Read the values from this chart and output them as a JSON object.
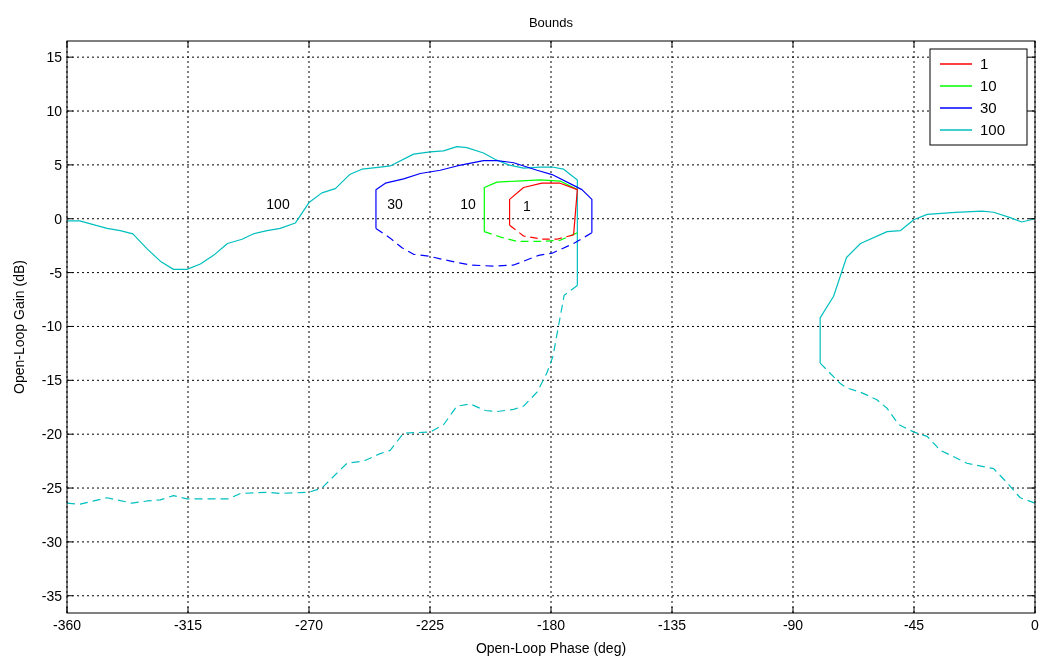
{
  "chart_data": {
    "type": "line",
    "title": "Bounds",
    "xlabel": "Open-Loop Phase (deg)",
    "ylabel": "Open-Loop Gain (dB)",
    "xlim": [
      -360,
      0
    ],
    "ylim": [
      -36.6,
      16.5
    ],
    "xticks": [
      -360,
      -315,
      -270,
      -225,
      -180,
      -135,
      -90,
      -45,
      0
    ],
    "yticks": [
      -35,
      -30,
      -25,
      -20,
      -15,
      -10,
      -5,
      0,
      5,
      10,
      15
    ],
    "grid": true,
    "legend": "top right",
    "series": [
      {
        "name": "1",
        "color": "#ff0000",
        "line_style": "solid",
        "x": [
          -195.4,
          -195.4,
          -190.2,
          -183.4,
          -176.6,
          -170.2,
          -171.6
        ],
        "values": [
          -0.6,
          1.8,
          2.9,
          3.3,
          3.3,
          2.7,
          -1.5
        ]
      },
      {
        "color": "#ff0000",
        "line_style": "dashed",
        "x": [
          -171.6,
          -177.8,
          -183.4,
          -190.2,
          -195.4
        ],
        "values": [
          -1.5,
          -1.9,
          -1.9,
          -1.6,
          -0.6
        ]
      },
      {
        "name": "10",
        "color": "#00ff00",
        "line_style": "solid",
        "x": [
          -204.8,
          -204.8,
          -200.1,
          -192.7,
          -184,
          -176.6,
          -170.2
        ],
        "values": [
          -1.2,
          2.9,
          3.4,
          3.5,
          3.6,
          3.5,
          2.7
        ]
      },
      {
        "color": "#00ff00",
        "line_style": "dashed",
        "x": [
          -170.2,
          -176.6,
          -184,
          -192.7,
          -198.8,
          -204.8
        ],
        "values": [
          -1.3,
          -2.0,
          -2.1,
          -2.1,
          -1.7,
          -1.2
        ]
      },
      {
        "name": "30",
        "color": "#0000ff",
        "line_style": "solid",
        "x": [
          -245.1,
          -245.1,
          -241.6,
          -234.8,
          -228.6,
          -221.2,
          -215,
          -205.1,
          -200.1,
          -193.9,
          -185.2,
          -179.6,
          -171.6,
          -168.5,
          -164.8,
          -164.8
        ],
        "values": [
          -0.9,
          2.7,
          3.3,
          3.7,
          4.2,
          4.5,
          4.9,
          5.4,
          5.4,
          5.2,
          4.5,
          4.1,
          3.1,
          2.7,
          1.8,
          -1.3
        ]
      },
      {
        "color": "#0000ff",
        "line_style": "dashed",
        "x": [
          -164.8,
          -171.6,
          -179.6,
          -184.6,
          -193.9,
          -201.3,
          -210,
          -219.9,
          -224.9,
          -231.1,
          -235.4,
          -239.8,
          -245.1
        ],
        "values": [
          -1.3,
          -2.3,
          -3.2,
          -3.4,
          -4.3,
          -4.4,
          -4.3,
          -3.8,
          -3.5,
          -3.3,
          -2.7,
          -1.8,
          -0.9
        ]
      },
      {
        "name": "100",
        "color": "#00bfbf",
        "line_style": "solid",
        "x": [
          -360,
          -355.3,
          -345.1,
          -340.2,
          -335.5,
          -330.2,
          -325,
          -320.4,
          -315.4,
          -310.4,
          -305.5,
          -300.3,
          -294.9,
          -290.6,
          -285.6,
          -280.7,
          -275.1,
          -270,
          -265.2,
          -260.2,
          -254.9,
          -250.3,
          -243.5,
          -239.8,
          -231.1,
          -224.9,
          -220,
          -215,
          -211.3,
          -205.1,
          -200.7,
          -195.8,
          -190.2,
          -184,
          -179.6,
          -175.3,
          -170.2,
          -170.2
        ],
        "values": [
          -0.2,
          -0.2,
          -0.9,
          -1.1,
          -1.4,
          -2.8,
          -4.0,
          -4.7,
          -4.7,
          -4.2,
          -3.4,
          -2.3,
          -1.9,
          -1.4,
          -1.1,
          -0.9,
          -0.4,
          1.5,
          2.4,
          2.8,
          4.1,
          4.6,
          4.8,
          4.9,
          6.0,
          6.2,
          6.3,
          6.7,
          6.6,
          6.1,
          5.5,
          5.0,
          4.7,
          4.8,
          4.8,
          4.6,
          3.6,
          -6.2
        ]
      },
      {
        "color": "#00bfbf",
        "line_style": "dashed",
        "x": [
          -170.2,
          -175.1,
          -176.8,
          -179.3,
          -181.5,
          -185.2,
          -190.2,
          -193.9,
          -200.1,
          -204.5,
          -210,
          -215,
          -219.9,
          -224.9,
          -234.8,
          -239.8,
          -243.5,
          -249.7,
          -255.9,
          -265.2,
          -270.2,
          -280.7,
          -285.6,
          -295.5,
          -299.9,
          -315.4,
          -320.4,
          -325.3,
          -330.2,
          -335.8,
          -345.1,
          -355.1,
          -360
        ],
        "values": [
          -6.2,
          -7.1,
          -9.4,
          -12.8,
          -14.3,
          -16.1,
          -17.4,
          -17.7,
          -17.9,
          -17.8,
          -17.2,
          -17.4,
          -19.1,
          -19.8,
          -19.9,
          -21.5,
          -21.8,
          -22.5,
          -22.7,
          -25.0,
          -25.4,
          -25.5,
          -25.4,
          -25.5,
          -26.0,
          -26.0,
          -25.7,
          -26.1,
          -26.2,
          -26.4,
          -25.9,
          -26.5,
          -26.4
        ]
      },
      {
        "color": "#00bfbf",
        "line_style": "solid",
        "x": [
          0,
          -4.9,
          -9.2,
          -15.4,
          -19.7,
          -29.6,
          -40.1,
          -45.1,
          -50,
          -55,
          -64.9,
          -70.1,
          -74.9,
          -79.9,
          -79.9
        ],
        "values": [
          0,
          -0.3,
          0.1,
          0.6,
          0.7,
          0.6,
          0.4,
          -0.1,
          -1.1,
          -1.2,
          -2.3,
          -3.6,
          -7.2,
          -9.2,
          -13.4
        ]
      },
      {
        "color": "#00bfbf",
        "line_style": "dashed",
        "x": [
          -79.9,
          -72.4,
          -70,
          -64.9,
          -58.8,
          -55,
          -50.7,
          -45.1,
          -40.1,
          -35.2,
          -30.2,
          -25.3,
          -15.4,
          -10.4,
          -5.5,
          0
        ],
        "values": [
          -13.4,
          -15.3,
          -15.7,
          -16.1,
          -16.8,
          -17.6,
          -19.1,
          -19.8,
          -20.2,
          -21.5,
          -22.1,
          -22.7,
          -23.2,
          -24.5,
          -25.9,
          -26.4
        ]
      }
    ],
    "annotations": [
      "100",
      "30",
      "10",
      "1"
    ]
  }
}
